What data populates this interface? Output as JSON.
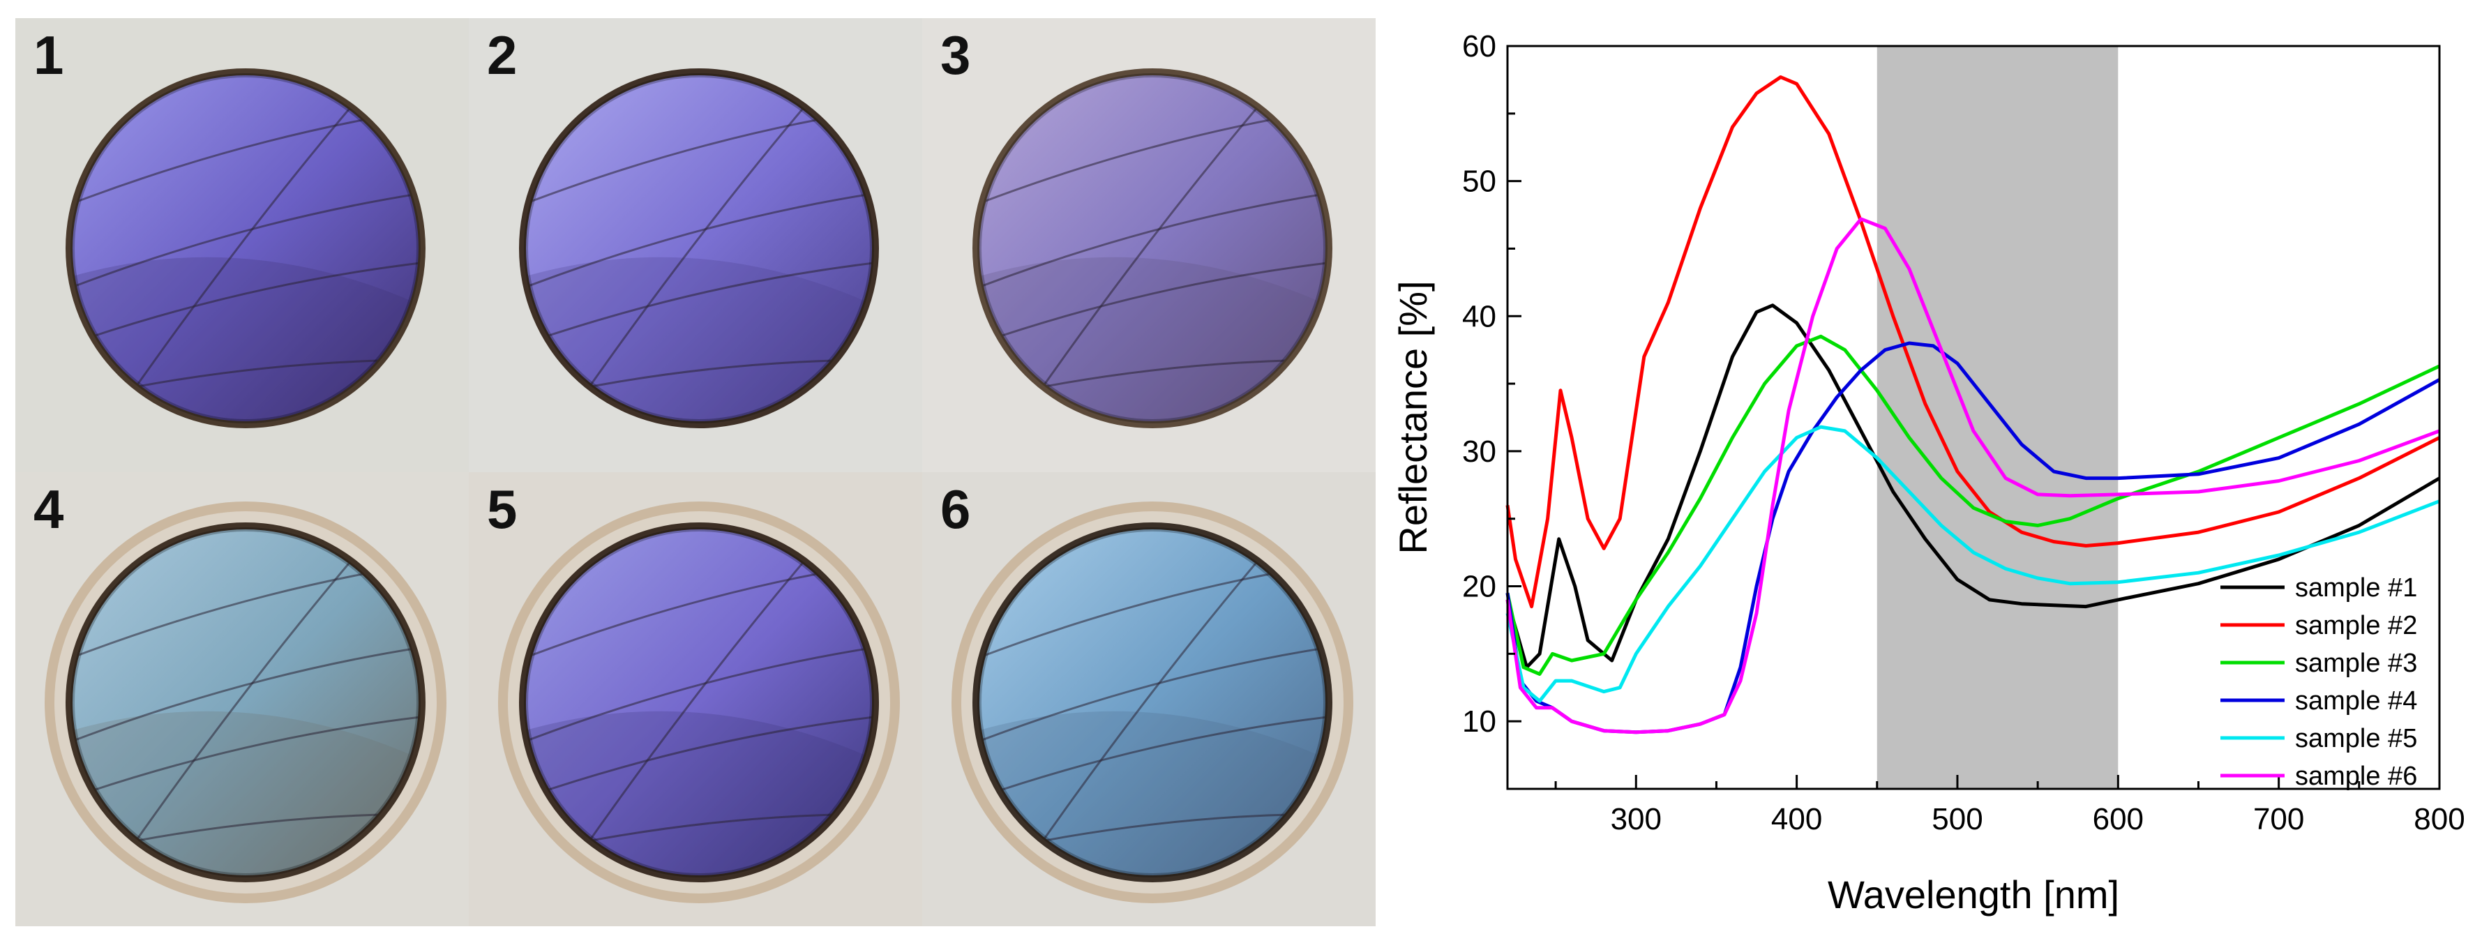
{
  "panels": [
    {
      "label": "1",
      "bg": "#dcdcd6",
      "rim": "#4a3a2c",
      "wing": "#6a5fc4",
      "dark": "#3c2f6e",
      "light": "#9a96ea",
      "halo": false
    },
    {
      "label": "2",
      "bg": "#dededa",
      "rim": "#3f3026",
      "wing": "#7a70d2",
      "dark": "#463c86",
      "light": "#aaa6ee",
      "halo": false
    },
    {
      "label": "3",
      "bg": "#e2e0dc",
      "rim": "#5c4a3a",
      "wing": "#8478c0",
      "dark": "#5d4e7c",
      "light": "#b2a4d8",
      "halo": false
    },
    {
      "label": "4",
      "bg": "#dedcd6",
      "rim": "#403226",
      "wing": "#7ea6bc",
      "dark": "#6a6e6a",
      "light": "#a8c8dc",
      "halo": true
    },
    {
      "label": "5",
      "bg": "#ddd9d2",
      "rim": "#3c2e24",
      "wing": "#7468cc",
      "dark": "#3a3478",
      "light": "#9a9ae6",
      "halo": true
    },
    {
      "label": "6",
      "bg": "#dddbd6",
      "rim": "#3a2f26",
      "wing": "#6e9ec6",
      "dark": "#4a6688",
      "light": "#a6cce8",
      "halo": true
    }
  ],
  "chart_data": {
    "type": "line",
    "xlabel": "Wavelength [nm]",
    "ylabel": "Reflectance [%]",
    "xlim": [
      220,
      800
    ],
    "ylim": [
      5,
      60
    ],
    "xticks": [
      300,
      400,
      500,
      600,
      700,
      800
    ],
    "yticks": [
      10,
      20,
      30,
      40,
      50,
      60
    ],
    "x_tick_labels": [
      "300",
      "400",
      "500",
      "600",
      "700",
      "800"
    ],
    "y_tick_labels": [
      "10",
      "20",
      "30",
      "40",
      "50",
      "60"
    ],
    "shaded_band": {
      "from": 450,
      "to": 600,
      "color": "#c0c0c0"
    },
    "legend_position": "bottom-right",
    "series": [
      {
        "name": "sample #1",
        "color": "#000000",
        "x": [
          220,
          232,
          240,
          252,
          262,
          270,
          285,
          300,
          320,
          340,
          360,
          375,
          385,
          400,
          420,
          440,
          460,
          480,
          500,
          520,
          540,
          560,
          580,
          600,
          650,
          700,
          750,
          800
        ],
        "y": [
          19,
          14,
          15,
          23.5,
          20,
          16,
          14.5,
          19,
          23.5,
          30,
          37,
          40.3,
          40.8,
          39.5,
          36,
          31.5,
          27,
          23.5,
          20.5,
          19,
          18.7,
          18.6,
          18.5,
          19,
          20.2,
          22,
          24.5,
          28
        ]
      },
      {
        "name": "sample #2",
        "color": "#ff0000",
        "x": [
          220,
          225,
          235,
          245,
          253,
          260,
          270,
          280,
          290,
          300,
          305,
          320,
          340,
          360,
          375,
          390,
          400,
          420,
          440,
          460,
          480,
          500,
          520,
          540,
          560,
          580,
          600,
          650,
          700,
          750,
          800
        ],
        "y": [
          26,
          22,
          18.5,
          25,
          34.5,
          31,
          25,
          22.8,
          25,
          33,
          37,
          41,
          48,
          54,
          56.5,
          57.7,
          57.2,
          53.5,
          47,
          40,
          33.5,
          28.5,
          25.5,
          24,
          23.3,
          23,
          23.2,
          24,
          25.5,
          28,
          31
        ]
      },
      {
        "name": "sample #3",
        "color": "#00dd00",
        "x": [
          220,
          230,
          240,
          248,
          260,
          280,
          290,
          300,
          320,
          340,
          360,
          380,
          400,
          415,
          430,
          450,
          470,
          490,
          510,
          530,
          550,
          570,
          600,
          650,
          700,
          750,
          800
        ],
        "y": [
          19.5,
          14,
          13.5,
          15,
          14.5,
          15,
          17,
          19,
          22.5,
          26.5,
          31,
          35,
          37.8,
          38.5,
          37.5,
          34.5,
          31,
          28,
          25.8,
          24.8,
          24.5,
          25,
          26.5,
          28.5,
          31,
          33.5,
          36.3
        ]
      },
      {
        "name": "sample #4",
        "color": "#0000dd",
        "x": [
          220,
          228,
          238,
          248,
          260,
          280,
          300,
          320,
          340,
          355,
          365,
          375,
          385,
          395,
          410,
          425,
          440,
          455,
          470,
          485,
          500,
          520,
          540,
          560,
          580,
          600,
          650,
          700,
          750,
          800
        ],
        "y": [
          19.5,
          13,
          11.5,
          11,
          10,
          9.3,
          9.2,
          9.3,
          9.8,
          10.5,
          14,
          20,
          25,
          28.5,
          31.5,
          34,
          36,
          37.5,
          38,
          37.8,
          36.5,
          33.5,
          30.5,
          28.5,
          28,
          28,
          28.3,
          29.5,
          32,
          35.3
        ]
      },
      {
        "name": "sample #5",
        "color": "#00e8f0",
        "x": [
          220,
          230,
          240,
          250,
          260,
          280,
          290,
          300,
          320,
          340,
          360,
          380,
          400,
          415,
          430,
          450,
          470,
          490,
          510,
          530,
          550,
          570,
          600,
          650,
          700,
          750,
          800
        ],
        "y": [
          18,
          12.5,
          11.5,
          13,
          13,
          12.2,
          12.5,
          15,
          18.5,
          21.5,
          25,
          28.5,
          31,
          31.8,
          31.5,
          29.5,
          27,
          24.5,
          22.5,
          21.3,
          20.6,
          20.2,
          20.3,
          21,
          22.3,
          24,
          26.3
        ]
      },
      {
        "name": "sample #6",
        "color": "#ff00ff",
        "x": [
          220,
          228,
          238,
          248,
          260,
          280,
          300,
          320,
          340,
          355,
          365,
          375,
          385,
          395,
          410,
          425,
          440,
          455,
          470,
          490,
          510,
          530,
          550,
          570,
          600,
          650,
          700,
          750,
          800
        ],
        "y": [
          19,
          12.5,
          11,
          11,
          10,
          9.3,
          9.2,
          9.3,
          9.8,
          10.5,
          13,
          18,
          26,
          33,
          40,
          45,
          47.2,
          46.5,
          43.5,
          37.5,
          31.5,
          28,
          26.8,
          26.7,
          26.8,
          27,
          27.8,
          29.3,
          31.5
        ]
      }
    ]
  }
}
